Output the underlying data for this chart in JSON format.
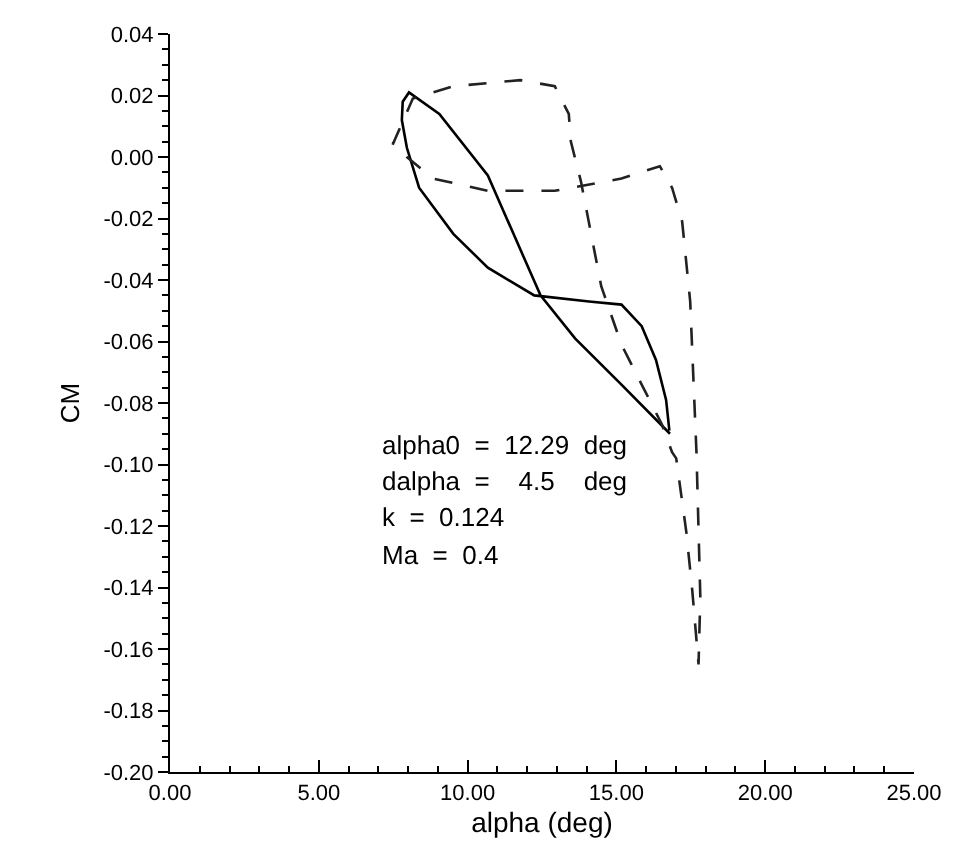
{
  "chart_data": {
    "type": "line",
    "xlabel": "alpha (deg)",
    "ylabel": "CM",
    "xlim": [
      0,
      25
    ],
    "ylim": [
      -0.2,
      0.04
    ],
    "xticks": [
      {
        "value": 0,
        "label": "0.00"
      },
      {
        "value": 5,
        "label": "5.00"
      },
      {
        "value": 10,
        "label": "10.00"
      },
      {
        "value": 15,
        "label": "15.00"
      },
      {
        "value": 20,
        "label": "20.00"
      },
      {
        "value": 25,
        "label": "25.00"
      }
    ],
    "yticks": [
      {
        "value": 0.04,
        "label": "0.04"
      },
      {
        "value": 0.02,
        "label": "0.02"
      },
      {
        "value": 0,
        "label": "0.00"
      },
      {
        "value": -0.02,
        "label": "-0.02"
      },
      {
        "value": -0.04,
        "label": "-0.04"
      },
      {
        "value": -0.06,
        "label": "-0.06"
      },
      {
        "value": -0.08,
        "label": "-0.08"
      },
      {
        "value": -0.1,
        "label": "-0.10"
      },
      {
        "value": -0.12,
        "label": "-0.12"
      },
      {
        "value": -0.14,
        "label": "-0.14"
      },
      {
        "value": -0.16,
        "label": "-0.16"
      },
      {
        "value": -0.18,
        "label": "-0.18"
      },
      {
        "value": -0.2,
        "label": "-0.20"
      }
    ],
    "marker": "none",
    "annotations": [
      "alpha0  =  12.29  deg",
      "dalpha  =    4.5    deg",
      "k  =  0.124",
      "Ma  =  0.4"
    ],
    "series": [
      {
        "color": "#000000",
        "line_style": "solid",
        "x": [
          16.8,
          15.17,
          13.61,
          12.45,
          10.68,
          9.05,
          8.03,
          7.82,
          7.79,
          7.96,
          8.37,
          9.52,
          10.68,
          12.24,
          14.08,
          15.17,
          15.85,
          16.33,
          16.67,
          16.78
        ],
        "values": [
          -0.09,
          -0.074,
          -0.059,
          -0.045,
          -0.006,
          0.014,
          0.021,
          0.018,
          0.012,
          0.003,
          -0.01,
          -0.025,
          -0.036,
          -0.045,
          -0.047,
          -0.048,
          -0.055,
          -0.066,
          -0.079,
          -0.089
        ]
      },
      {
        "color": "#222222",
        "line_style": "dashed",
        "x": [
          7.48,
          8.16,
          9.52,
          11.77,
          12.93,
          13.4,
          13.47,
          13.81,
          14.15,
          14.49,
          15.17,
          15.85,
          16.53,
          16.87,
          17.01,
          17.35,
          17.55,
          17.76,
          17.82,
          17.69,
          17.48,
          17.21,
          16.87,
          16.46,
          15.17,
          12.93,
          10.68,
          8.84,
          7.96,
          7.48
        ],
        "values": [
          0.004,
          0.019,
          0.023,
          0.025,
          0.023,
          0.014,
          0.005,
          -0.008,
          -0.025,
          -0.042,
          -0.061,
          -0.074,
          -0.087,
          -0.096,
          -0.098,
          -0.122,
          -0.141,
          -0.165,
          -0.143,
          -0.096,
          -0.047,
          -0.021,
          -0.01,
          -0.003,
          -0.007,
          -0.011,
          -0.011,
          -0.007,
          0.0,
          0.005
        ]
      }
    ]
  }
}
